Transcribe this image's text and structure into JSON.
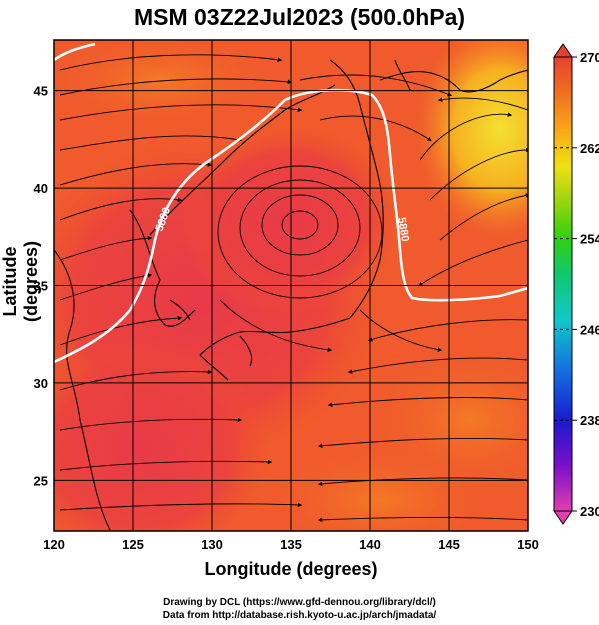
{
  "title": "MSM 03Z22Jul2023 (500.0hPa)",
  "x_axis": {
    "label": "Longitude (degrees)",
    "ticks": [
      "120",
      "125",
      "130",
      "135",
      "140",
      "145",
      "150"
    ],
    "range": [
      120,
      150
    ]
  },
  "y_axis": {
    "label": "Latitude  (degrees)",
    "ticks": [
      "25",
      "30",
      "35",
      "40",
      "45"
    ],
    "range": [
      22.4,
      47.6
    ]
  },
  "colorbar": {
    "ticks": [
      "270",
      "262",
      "254",
      "246",
      "238",
      "230"
    ],
    "range": [
      230,
      270
    ],
    "colors": [
      "#e040b0",
      "#7a10c8",
      "#1a1ad0",
      "#1478e0",
      "#10c8c8",
      "#10c870",
      "#30d010",
      "#b0d810",
      "#f0e010",
      "#f8a818",
      "#f07020",
      "#e84030"
    ]
  },
  "contours": [
    {
      "label": "5880",
      "value": 5880,
      "color": "#ffffff"
    }
  ],
  "credits": {
    "line1": "Drawing by DCL (https://www.gfd-dennou.org/library/dcl/)",
    "line2": "Data from http://database.rish.kyoto-u.ac.jp/arch/jmadata/"
  },
  "colors": {
    "field_warm": "#f05030",
    "field_hot": "#e83a3a",
    "field_cool": "#f0d020",
    "grid": "#000000",
    "contour": "#ffffff"
  }
}
